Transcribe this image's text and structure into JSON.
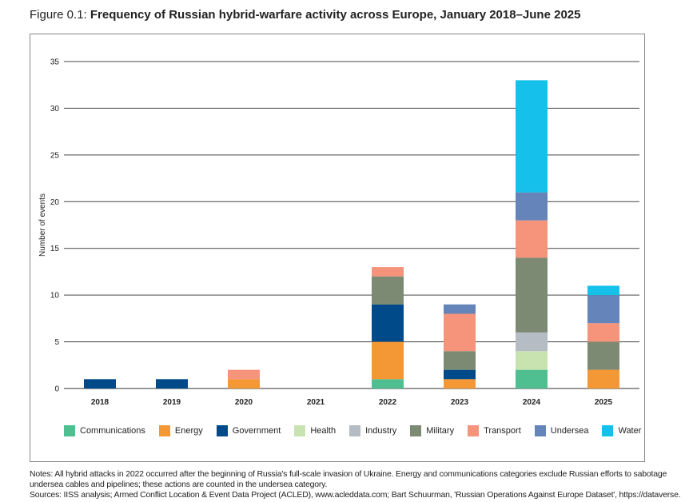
{
  "title_prefix": "Figure 0.1: ",
  "title_main": "Frequency of Russian hybrid-warfare activity across Europe, January 2018–June 2025",
  "notes": [
    "Notes: All hybrid attacks in 2022 occurred after the beginning of Russia's full-scale invasion of Ukraine. Energy and communications categories exclude Russian efforts to sabotage",
    "undersea cables and pipelines; these actions are counted in the undersea category.",
    "Sources: IISS analysis; Armed Conflict Location & Event Data Project (ACLED), www.acleddata.com; Bart Schuurman, 'Russian Operations Against Europe Dataset', https://dataverse."
  ],
  "chart_data": {
    "type": "bar",
    "stacked": true,
    "title": "Frequency of Russian hybrid-warfare activity across Europe, January 2018–June 2025",
    "xlabel": "",
    "ylabel": "Number of events",
    "ylim": [
      0,
      35
    ],
    "yticks": [
      0,
      5,
      10,
      15,
      20,
      25,
      30,
      35
    ],
    "grid": true,
    "legend": "bottom",
    "categories": [
      "2018",
      "2019",
      "2020",
      "2021",
      "2022",
      "2023",
      "2024",
      "2025"
    ],
    "series": [
      {
        "name": "Communications",
        "color": "#4fbf91",
        "values": [
          0,
          0,
          0,
          0,
          1,
          0,
          2,
          0
        ]
      },
      {
        "name": "Energy",
        "color": "#f39834",
        "values": [
          0,
          0,
          1,
          0,
          4,
          1,
          0,
          2
        ]
      },
      {
        "name": "Government",
        "color": "#004a8a",
        "values": [
          1,
          1,
          0,
          0,
          4,
          1,
          0,
          0
        ]
      },
      {
        "name": "Health",
        "color": "#c8e3b0",
        "values": [
          0,
          0,
          0,
          0,
          0,
          0,
          2,
          0
        ]
      },
      {
        "name": "Industry",
        "color": "#b6bcc3",
        "values": [
          0,
          0,
          0,
          0,
          0,
          0,
          2,
          0
        ]
      },
      {
        "name": "Military",
        "color": "#7d8a73",
        "values": [
          0,
          0,
          0,
          0,
          3,
          2,
          8,
          3
        ]
      },
      {
        "name": "Transport",
        "color": "#f5937b",
        "values": [
          0,
          0,
          1,
          0,
          1,
          4,
          4,
          2
        ]
      },
      {
        "name": "Undersea",
        "color": "#6585ba",
        "values": [
          0,
          0,
          0,
          0,
          0,
          1,
          3,
          3
        ]
      },
      {
        "name": "Water",
        "color": "#15c0ea",
        "values": [
          0,
          0,
          0,
          0,
          0,
          0,
          12,
          1
        ]
      }
    ]
  }
}
